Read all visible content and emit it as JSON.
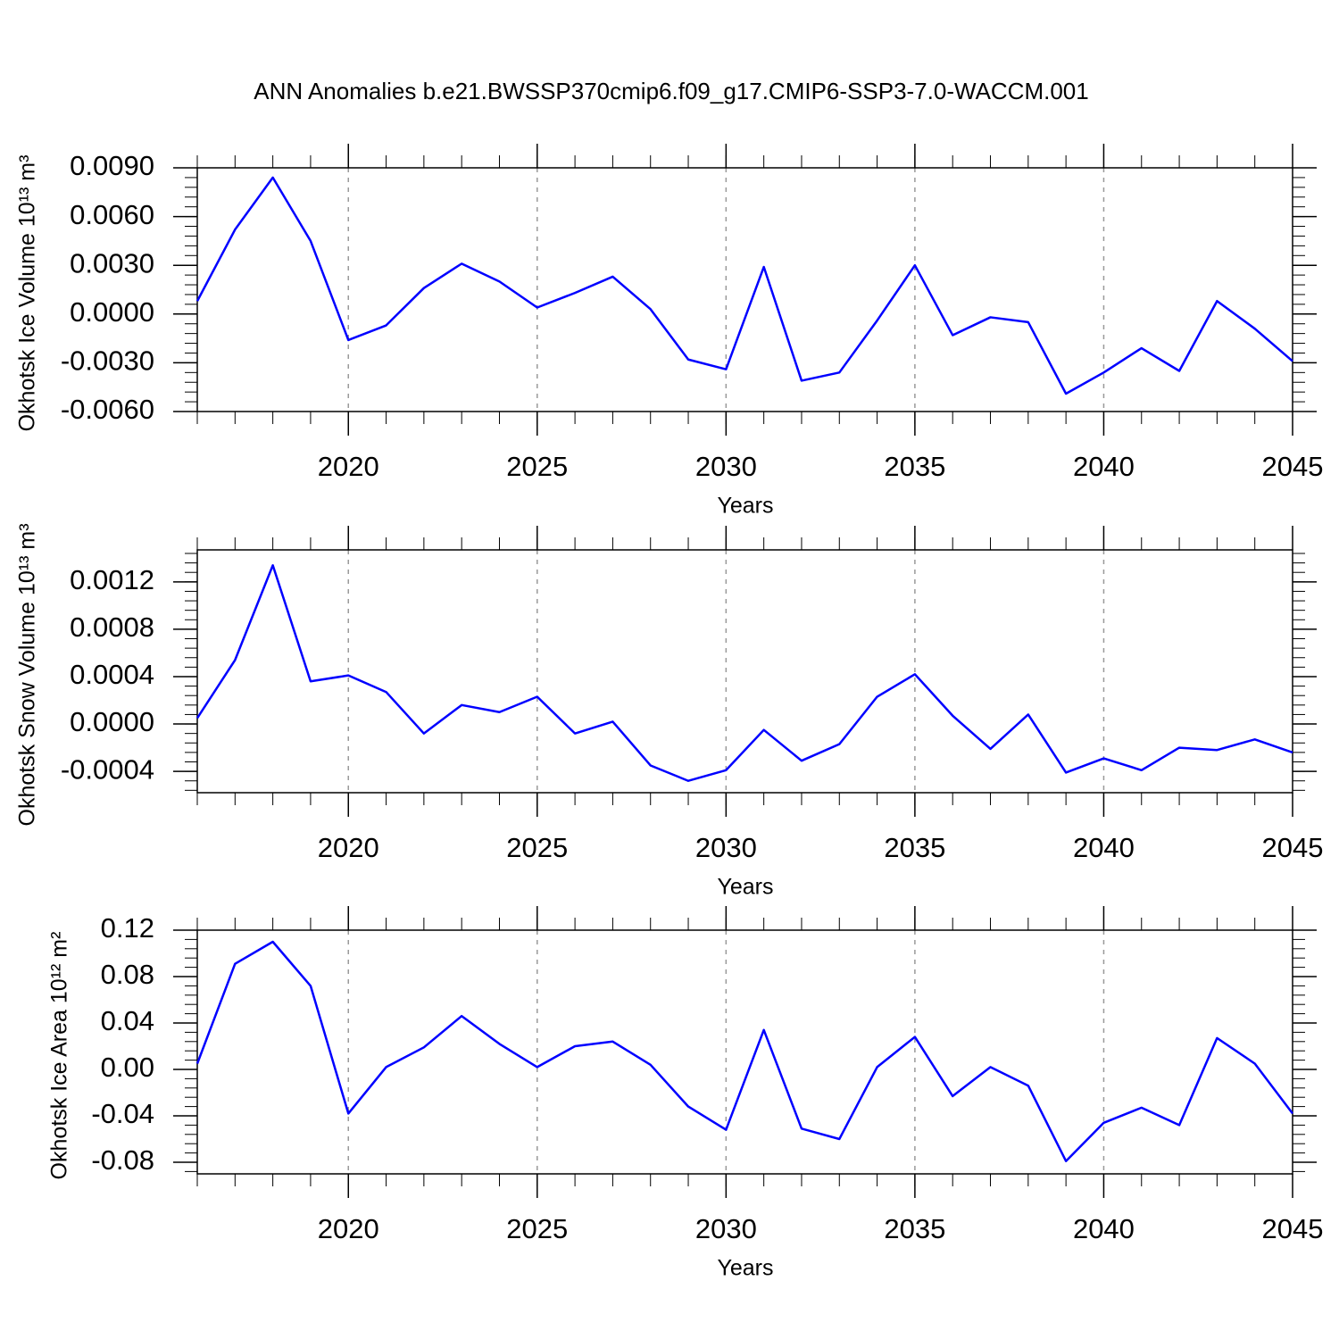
{
  "chart_data": [
    {
      "type": "line",
      "title": "ANN Anomalies b.e21.BWSSP370cmip6.f09_g17.CMIP6-SSP3-7.0-WACCM.001",
      "xlabel": "Years",
      "ylabel": "Okhotsk Ice Volume 10¹³ m³",
      "x": [
        2016,
        2017,
        2018,
        2019,
        2020,
        2021,
        2022,
        2023,
        2024,
        2025,
        2026,
        2027,
        2028,
        2029,
        2030,
        2031,
        2032,
        2033,
        2034,
        2035,
        2036,
        2037,
        2038,
        2039,
        2040,
        2041,
        2042,
        2043,
        2044,
        2045
      ],
      "series": [
        {
          "color": "#0000ff",
          "values": [
            0.0008,
            0.0052,
            0.0084,
            0.0045,
            -0.0016,
            -0.0007,
            0.0016,
            0.0031,
            0.002,
            0.0004,
            0.0013,
            0.0023,
            0.0003,
            -0.0028,
            -0.0034,
            0.0029,
            -0.0041,
            -0.0036,
            -0.0004,
            0.003,
            -0.0013,
            -0.0002,
            -0.0005,
            -0.0049,
            -0.0036,
            -0.0021,
            -0.0035,
            0.0008,
            -0.0009,
            -0.0029
          ]
        }
      ],
      "xlim": [
        2016,
        2045
      ],
      "xticks": [
        2020,
        2025,
        2030,
        2035,
        2040,
        2045
      ],
      "ylim": [
        -0.006,
        0.009
      ],
      "yticks": [
        {
          "value": 0.009,
          "label": "0.0090"
        },
        {
          "value": 0.006,
          "label": "0.0060"
        },
        {
          "value": 0.003,
          "label": "0.0030"
        },
        {
          "value": 0,
          "label": "0.0000"
        },
        {
          "value": -0.003,
          "label": "-0.0030"
        },
        {
          "value": -0.006,
          "label": "-0.0060"
        }
      ],
      "grid": "x-dashed"
    },
    {
      "type": "line",
      "xlabel": "Years",
      "ylabel": "Okhotsk Snow Volume 10¹³ m³",
      "x": [
        2016,
        2017,
        2018,
        2019,
        2020,
        2021,
        2022,
        2023,
        2024,
        2025,
        2026,
        2027,
        2028,
        2029,
        2030,
        2031,
        2032,
        2033,
        2034,
        2035,
        2036,
        2037,
        2038,
        2039,
        2040,
        2041,
        2042,
        2043,
        2044,
        2045
      ],
      "series": [
        {
          "color": "#0000ff",
          "values": [
            5e-05,
            0.00054,
            0.00134,
            0.00036,
            0.00041,
            0.00027,
            -8e-05,
            0.00016,
            0.0001,
            0.00023,
            -8e-05,
            2e-05,
            -0.00035,
            -0.00048,
            -0.00039,
            -5e-05,
            -0.00031,
            -0.00017,
            0.00023,
            0.00042,
            7e-05,
            -0.00021,
            8e-05,
            -0.00041,
            -0.00029,
            -0.00039,
            -0.0002,
            -0.00022,
            -0.00013,
            -0.00024
          ]
        }
      ],
      "xlim": [
        2016,
        2045
      ],
      "xticks": [
        2020,
        2025,
        2030,
        2035,
        2040,
        2045
      ],
      "ylim": [
        -0.00058,
        0.00147
      ],
      "yticks": [
        {
          "value": 0.0012,
          "label": "0.0012"
        },
        {
          "value": 0.0008,
          "label": "0.0008"
        },
        {
          "value": 0.0004,
          "label": "0.0004"
        },
        {
          "value": 0,
          "label": "0.0000"
        },
        {
          "value": -0.0004,
          "label": "-0.0004"
        }
      ],
      "grid": "x-dashed"
    },
    {
      "type": "line",
      "xlabel": "Years",
      "ylabel": "Okhotsk Ice Area 10¹² m²",
      "x": [
        2016,
        2017,
        2018,
        2019,
        2020,
        2021,
        2022,
        2023,
        2024,
        2025,
        2026,
        2027,
        2028,
        2029,
        2030,
        2031,
        2032,
        2033,
        2034,
        2035,
        2036,
        2037,
        2038,
        2039,
        2040,
        2041,
        2042,
        2043,
        2044,
        2045
      ],
      "series": [
        {
          "color": "#0000ff",
          "values": [
            0.005,
            0.091,
            0.11,
            0.072,
            -0.038,
            0.002,
            0.019,
            0.046,
            0.022,
            0.002,
            0.02,
            0.024,
            0.004,
            -0.032,
            -0.052,
            0.034,
            -0.051,
            -0.06,
            0.002,
            0.028,
            -0.023,
            0.002,
            -0.014,
            -0.079,
            -0.046,
            -0.033,
            -0.048,
            0.027,
            0.005,
            -0.038
          ]
        }
      ],
      "xlim": [
        2016,
        2045
      ],
      "xticks": [
        2020,
        2025,
        2030,
        2035,
        2040,
        2045
      ],
      "ylim": [
        -0.09,
        0.12
      ],
      "yticks": [
        0.12,
        0.08,
        0.04,
        {
          "value": 0,
          "label": "0.00"
        },
        -0.04,
        -0.08
      ],
      "grid": "x-dashed"
    }
  ]
}
